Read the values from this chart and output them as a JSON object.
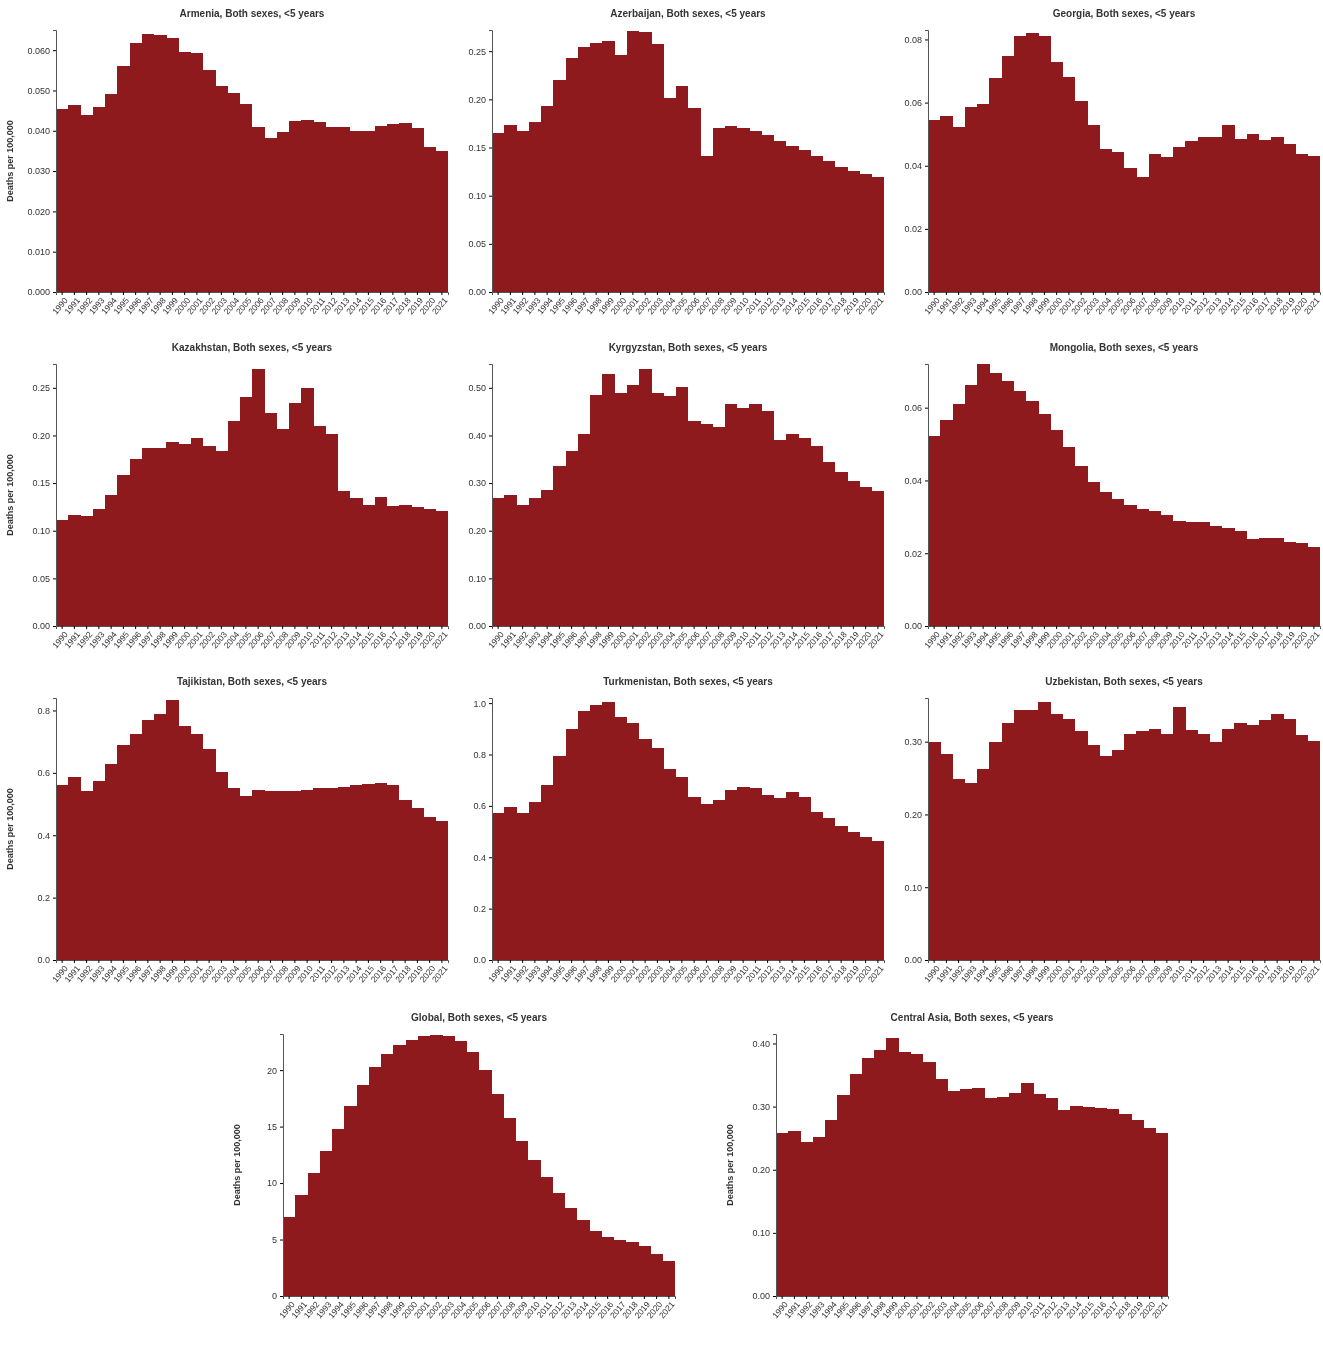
{
  "chart_data": [
    {
      "type": "bar",
      "title": "Armenia, Both sexes, <5 years",
      "ylabel": "Deaths per 100,000",
      "color": "#8f1a1e",
      "categories": [
        "1990",
        "1991",
        "1992",
        "1993",
        "1994",
        "1995",
        "1996",
        "1997",
        "1998",
        "1999",
        "2000",
        "2001",
        "2002",
        "2003",
        "2004",
        "2005",
        "2006",
        "2007",
        "2008",
        "2009",
        "2010",
        "2011",
        "2012",
        "2013",
        "2014",
        "2015",
        "2016",
        "2017",
        "2018",
        "2019",
        "2020",
        "2021"
      ],
      "values": [
        0.0453,
        0.0463,
        0.0439,
        0.0458,
        0.0491,
        0.056,
        0.0617,
        0.064,
        0.0637,
        0.0629,
        0.0596,
        0.0592,
        0.0551,
        0.0512,
        0.0494,
        0.0467,
        0.0409,
        0.0382,
        0.0397,
        0.0423,
        0.0426,
        0.0421,
        0.0409,
        0.041,
        0.0399,
        0.04,
        0.0411,
        0.0416,
        0.042,
        0.0407,
        0.0359,
        0.0349
      ],
      "ylim": [
        0,
        0.065
      ],
      "yticks": [
        {
          "value": 0,
          "label": "0.000"
        },
        {
          "value": 0.01,
          "label": "0.010"
        },
        {
          "value": 0.02,
          "label": "0.020"
        },
        {
          "value": 0.03,
          "label": "0.030"
        },
        {
          "value": 0.04,
          "label": "0.040"
        },
        {
          "value": 0.05,
          "label": "0.050"
        },
        {
          "value": 0.06,
          "label": "0.060"
        }
      ]
    },
    {
      "type": "bar",
      "title": "Azerbaijan, Both sexes, <5 years",
      "color": "#8f1a1e",
      "categories": [
        "1990",
        "1991",
        "1992",
        "1993",
        "1994",
        "1995",
        "1996",
        "1997",
        "1998",
        "1999",
        "2000",
        "2001",
        "2002",
        "2003",
        "2004",
        "2005",
        "2006",
        "2007",
        "2008",
        "2009",
        "2010",
        "2011",
        "2012",
        "2013",
        "2014",
        "2015",
        "2016",
        "2017",
        "2018",
        "2019",
        "2020",
        "2021"
      ],
      "values": [
        0.165,
        0.173,
        0.167,
        0.176,
        0.193,
        0.22,
        0.243,
        0.254,
        0.258,
        0.261,
        0.246,
        0.271,
        0.27,
        0.257,
        0.201,
        0.214,
        0.191,
        0.141,
        0.17,
        0.172,
        0.17,
        0.167,
        0.163,
        0.157,
        0.152,
        0.147,
        0.141,
        0.136,
        0.13,
        0.126,
        0.122,
        0.119
      ],
      "ylim": [
        0,
        0.272
      ],
      "yticks": [
        {
          "value": 0,
          "label": "0.00"
        },
        {
          "value": 0.05,
          "label": "0.05"
        },
        {
          "value": 0.1,
          "label": "0.10"
        },
        {
          "value": 0.15,
          "label": "0.15"
        },
        {
          "value": 0.2,
          "label": "0.20"
        },
        {
          "value": 0.25,
          "label": "0.25"
        }
      ]
    },
    {
      "type": "bar",
      "title": "Georgia, Both sexes, <5 years",
      "color": "#8f1a1e",
      "categories": [
        "1990",
        "1991",
        "1992",
        "1993",
        "1994",
        "1995",
        "1996",
        "1997",
        "1998",
        "1999",
        "2000",
        "2001",
        "2002",
        "2003",
        "2004",
        "2005",
        "2006",
        "2007",
        "2008",
        "2009",
        "2010",
        "2011",
        "2012",
        "2013",
        "2014",
        "2015",
        "2016",
        "2017",
        "2018",
        "2019",
        "2020",
        "2021"
      ],
      "values": [
        0.0544,
        0.0559,
        0.0524,
        0.0586,
        0.0596,
        0.0678,
        0.0748,
        0.081,
        0.082,
        0.081,
        0.0728,
        0.0681,
        0.0606,
        0.0529,
        0.0452,
        0.0445,
        0.0393,
        0.0365,
        0.0437,
        0.0427,
        0.046,
        0.0477,
        0.0492,
        0.0492,
        0.0529,
        0.0484,
        0.0502,
        0.048,
        0.0492,
        0.047,
        0.0437,
        0.0432
      ],
      "ylim": [
        0,
        0.083
      ],
      "yticks": [
        {
          "value": 0,
          "label": "0.00"
        },
        {
          "value": 0.02,
          "label": "0.02"
        },
        {
          "value": 0.04,
          "label": "0.04"
        },
        {
          "value": 0.06,
          "label": "0.06"
        },
        {
          "value": 0.08,
          "label": "0.08"
        }
      ]
    },
    {
      "type": "bar",
      "title": "Kazakhstan, Both sexes, <5 years",
      "ylabel": "Deaths per 100,000",
      "color": "#8f1a1e",
      "categories": [
        "1990",
        "1991",
        "1992",
        "1993",
        "1994",
        "1995",
        "1996",
        "1997",
        "1998",
        "1999",
        "2000",
        "2001",
        "2002",
        "2003",
        "2004",
        "2005",
        "2006",
        "2007",
        "2008",
        "2009",
        "2010",
        "2011",
        "2012",
        "2013",
        "2014",
        "2015",
        "2016",
        "2017",
        "2018",
        "2019",
        "2020",
        "2021"
      ],
      "values": [
        0.111,
        0.116,
        0.115,
        0.123,
        0.138,
        0.158,
        0.175,
        0.187,
        0.187,
        0.193,
        0.191,
        0.197,
        0.189,
        0.184,
        0.215,
        0.24,
        0.27,
        0.224,
        0.207,
        0.234,
        0.25,
        0.21,
        0.202,
        0.142,
        0.134,
        0.127,
        0.135,
        0.126,
        0.127,
        0.125,
        0.123,
        0.121
      ],
      "ylim": [
        0,
        0.275
      ],
      "yticks": [
        {
          "value": 0,
          "label": "0.00"
        },
        {
          "value": 0.05,
          "label": "0.05"
        },
        {
          "value": 0.1,
          "label": "0.10"
        },
        {
          "value": 0.15,
          "label": "0.15"
        },
        {
          "value": 0.2,
          "label": "0.20"
        },
        {
          "value": 0.25,
          "label": "0.25"
        }
      ]
    },
    {
      "type": "bar",
      "title": "Kyrgyzstan, Both sexes, <5 years",
      "color": "#8f1a1e",
      "categories": [
        "1990",
        "1991",
        "1992",
        "1993",
        "1994",
        "1995",
        "1996",
        "1997",
        "1998",
        "1999",
        "2000",
        "2001",
        "2002",
        "2003",
        "2004",
        "2005",
        "2006",
        "2007",
        "2008",
        "2009",
        "2010",
        "2011",
        "2012",
        "2013",
        "2014",
        "2015",
        "2016",
        "2017",
        "2018",
        "2019",
        "2020",
        "2021"
      ],
      "values": [
        0.268,
        0.276,
        0.253,
        0.268,
        0.286,
        0.336,
        0.367,
        0.403,
        0.484,
        0.529,
        0.489,
        0.505,
        0.539,
        0.489,
        0.482,
        0.502,
        0.43,
        0.425,
        0.417,
        0.466,
        0.458,
        0.466,
        0.451,
        0.39,
        0.403,
        0.394,
        0.377,
        0.344,
        0.323,
        0.305,
        0.292,
        0.284
      ],
      "ylim": [
        0,
        0.55
      ],
      "yticks": [
        {
          "value": 0,
          "label": "0.00"
        },
        {
          "value": 0.1,
          "label": "0.10"
        },
        {
          "value": 0.2,
          "label": "0.20"
        },
        {
          "value": 0.3,
          "label": "0.30"
        },
        {
          "value": 0.4,
          "label": "0.40"
        },
        {
          "value": 0.5,
          "label": "0.50"
        }
      ]
    },
    {
      "type": "bar",
      "title": "Mongolia, Both sexes, <5 years",
      "color": "#8f1a1e",
      "categories": [
        "1990",
        "1991",
        "1992",
        "1993",
        "1994",
        "1995",
        "1996",
        "1997",
        "1998",
        "1999",
        "2000",
        "2001",
        "2002",
        "2003",
        "2004",
        "2005",
        "2006",
        "2007",
        "2008",
        "2009",
        "2010",
        "2011",
        "2012",
        "2013",
        "2014",
        "2015",
        "2016",
        "2017",
        "2018",
        "2019",
        "2020",
        "2021"
      ],
      "values": [
        0.0522,
        0.0567,
        0.0611,
        0.0661,
        0.072,
        0.0696,
        0.0674,
        0.0646,
        0.0617,
        0.0583,
        0.0539,
        0.0491,
        0.0439,
        0.0396,
        0.0367,
        0.035,
        0.0333,
        0.0322,
        0.0315,
        0.0304,
        0.0289,
        0.0287,
        0.0285,
        0.0276,
        0.027,
        0.0261,
        0.0239,
        0.0243,
        0.0243,
        0.023,
        0.0228,
        0.0217
      ],
      "ylim": [
        0,
        0.072
      ],
      "yticks": [
        {
          "value": 0,
          "label": "0.00"
        },
        {
          "value": 0.02,
          "label": "0.02"
        },
        {
          "value": 0.04,
          "label": "0.04"
        },
        {
          "value": 0.06,
          "label": "0.06"
        }
      ]
    },
    {
      "type": "bar",
      "title": "Tajikistan, Both sexes, <5 years",
      "ylabel": "Deaths per 100,000",
      "color": "#8f1a1e",
      "categories": [
        "1990",
        "1991",
        "1992",
        "1993",
        "1994",
        "1995",
        "1996",
        "1997",
        "1998",
        "1999",
        "2000",
        "2001",
        "2002",
        "2003",
        "2004",
        "2005",
        "2006",
        "2007",
        "2008",
        "2009",
        "2010",
        "2011",
        "2012",
        "2013",
        "2014",
        "2015",
        "2016",
        "2017",
        "2018",
        "2019",
        "2020",
        "2021"
      ],
      "values": [
        0.56,
        0.586,
        0.541,
        0.575,
        0.63,
        0.689,
        0.724,
        0.768,
        0.79,
        0.835,
        0.75,
        0.724,
        0.678,
        0.603,
        0.551,
        0.526,
        0.545,
        0.541,
        0.543,
        0.543,
        0.544,
        0.551,
        0.553,
        0.556,
        0.562,
        0.564,
        0.566,
        0.562,
        0.513,
        0.487,
        0.459,
        0.446
      ],
      "ylim": [
        0,
        0.84
      ],
      "yticks": [
        {
          "value": 0,
          "label": "0.0"
        },
        {
          "value": 0.2,
          "label": "0.2"
        },
        {
          "value": 0.4,
          "label": "0.4"
        },
        {
          "value": 0.6,
          "label": "0.6"
        },
        {
          "value": 0.8,
          "label": "0.8"
        }
      ]
    },
    {
      "type": "bar",
      "title": "Turkmenistan, Both sexes, <5 years",
      "color": "#8f1a1e",
      "categories": [
        "1990",
        "1991",
        "1992",
        "1993",
        "1994",
        "1995",
        "1996",
        "1997",
        "1998",
        "1999",
        "2000",
        "2001",
        "2002",
        "2003",
        "2004",
        "2005",
        "2006",
        "2007",
        "2008",
        "2009",
        "2010",
        "2011",
        "2012",
        "2013",
        "2014",
        "2015",
        "2016",
        "2017",
        "2018",
        "2019",
        "2020",
        "2021"
      ],
      "values": [
        0.571,
        0.596,
        0.574,
        0.614,
        0.681,
        0.796,
        0.9,
        0.97,
        0.994,
        1.006,
        0.945,
        0.921,
        0.86,
        0.824,
        0.745,
        0.711,
        0.635,
        0.608,
        0.623,
        0.663,
        0.675,
        0.669,
        0.644,
        0.632,
        0.653,
        0.635,
        0.578,
        0.553,
        0.52,
        0.498,
        0.477,
        0.465
      ],
      "ylim": [
        0,
        1.02
      ],
      "yticks": [
        {
          "value": 0,
          "label": "0.0"
        },
        {
          "value": 0.2,
          "label": "0.2"
        },
        {
          "value": 0.4,
          "label": "0.4"
        },
        {
          "value": 0.6,
          "label": "0.6"
        },
        {
          "value": 0.8,
          "label": "0.8"
        },
        {
          "value": 1,
          "label": "1.0"
        }
      ]
    },
    {
      "type": "bar",
      "title": "Uzbekistan, Both sexes, <5 years",
      "color": "#8f1a1e",
      "categories": [
        "1990",
        "1991",
        "1992",
        "1993",
        "1994",
        "1995",
        "1996",
        "1997",
        "1998",
        "1999",
        "2000",
        "2001",
        "2002",
        "2003",
        "2004",
        "2005",
        "2006",
        "2007",
        "2008",
        "2009",
        "2010",
        "2011",
        "2012",
        "2013",
        "2014",
        "2015",
        "2016",
        "2017",
        "2018",
        "2019",
        "2020",
        "2021"
      ],
      "values": [
        0.299,
        0.283,
        0.249,
        0.243,
        0.262,
        0.3,
        0.326,
        0.343,
        0.343,
        0.355,
        0.338,
        0.331,
        0.315,
        0.295,
        0.28,
        0.289,
        0.311,
        0.314,
        0.318,
        0.311,
        0.348,
        0.316,
        0.31,
        0.3,
        0.318,
        0.325,
        0.323,
        0.33,
        0.338,
        0.331,
        0.309,
        0.301
      ],
      "ylim": [
        0,
        0.36
      ],
      "yticks": [
        {
          "value": 0,
          "label": "0.00"
        },
        {
          "value": 0.1,
          "label": "0.10"
        },
        {
          "value": 0.2,
          "label": "0.20"
        },
        {
          "value": 0.3,
          "label": "0.30"
        }
      ]
    },
    {
      "type": "bar",
      "title": "Global, Both sexes, <5 years",
      "ylabel": "Deaths per 100,000",
      "color": "#8f1a1e",
      "categories": [
        "1990",
        "1991",
        "1992",
        "1993",
        "1994",
        "1995",
        "1996",
        "1997",
        "1998",
        "1999",
        "2000",
        "2001",
        "2002",
        "2003",
        "2004",
        "2005",
        "2006",
        "2007",
        "2008",
        "2009",
        "2010",
        "2011",
        "2012",
        "2013",
        "2014",
        "2015",
        "2016",
        "2017",
        "2018",
        "2019",
        "2020",
        "2021"
      ],
      "values": [
        7.0,
        8.9,
        10.9,
        12.8,
        14.8,
        16.8,
        18.7,
        20.3,
        21.4,
        22.2,
        22.7,
        23.0,
        23.1,
        23.0,
        22.6,
        21.6,
        20.0,
        17.9,
        15.8,
        13.7,
        12.0,
        10.5,
        9.1,
        7.8,
        6.7,
        5.8,
        5.2,
        5.0,
        4.8,
        4.4,
        3.7,
        3.1
      ],
      "ylim": [
        0,
        23.2
      ],
      "yticks": [
        0,
        5,
        10,
        15,
        20
      ]
    },
    {
      "type": "bar",
      "title": "Central Asia, Both sexes, <5 years",
      "ylabel": "Deaths per 100,000",
      "color": "#8f1a1e",
      "categories": [
        "1990",
        "1991",
        "1992",
        "1993",
        "1994",
        "1995",
        "1996",
        "1997",
        "1998",
        "1999",
        "2000",
        "2001",
        "2002",
        "2003",
        "2004",
        "2005",
        "2006",
        "2007",
        "2008",
        "2009",
        "2010",
        "2011",
        "2012",
        "2013",
        "2014",
        "2015",
        "2016",
        "2017",
        "2018",
        "2019",
        "2020",
        "2021"
      ],
      "values": [
        0.258,
        0.261,
        0.244,
        0.252,
        0.279,
        0.318,
        0.352,
        0.377,
        0.39,
        0.408,
        0.386,
        0.384,
        0.37,
        0.344,
        0.325,
        0.328,
        0.329,
        0.313,
        0.315,
        0.321,
        0.338,
        0.32,
        0.313,
        0.294,
        0.301,
        0.3,
        0.298,
        0.296,
        0.288,
        0.279,
        0.266,
        0.258
      ],
      "ylim": [
        0,
        0.415
      ],
      "yticks": [
        {
          "value": 0,
          "label": "0.00"
        },
        {
          "value": 0.1,
          "label": "0.10"
        },
        {
          "value": 0.2,
          "label": "0.20"
        },
        {
          "value": 0.3,
          "label": "0.30"
        },
        {
          "value": 0.4,
          "label": "0.40"
        }
      ]
    }
  ]
}
